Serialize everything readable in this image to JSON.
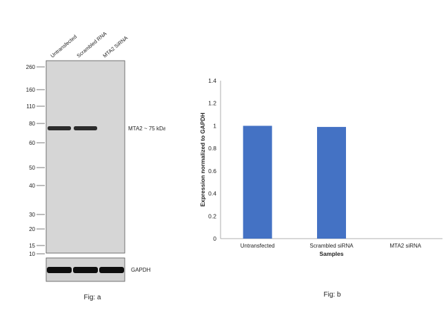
{
  "chart_data": [
    {
      "type": "western-blot",
      "lanes": [
        "Untransfected",
        "Scrambled RNA",
        "MTA2  SiRNA"
      ],
      "markers": [
        260,
        160,
        110,
        80,
        60,
        50,
        40,
        30,
        20,
        15,
        10
      ],
      "band_label": "MTA2 ~ 75 kDa",
      "band_kda": 75,
      "band_intensity": [
        1,
        1,
        0
      ],
      "loading_control_label": "GAPDH",
      "loading_control_intensity": [
        1,
        1,
        1
      ],
      "caption": "Fig: a"
    },
    {
      "type": "bar",
      "categories": [
        "Untransfected",
        "Scrambled siRNA",
        "MTA2 siRNA"
      ],
      "values": [
        1.0,
        0.99,
        0.0
      ],
      "xlabel": "Samples",
      "ylabel": "Expression normalized to GAPDH",
      "ylim": [
        0,
        1.4
      ],
      "yticks": [
        0,
        0.2,
        0.4,
        0.6,
        0.8,
        1,
        1.2,
        1.4
      ],
      "grid": false,
      "colors": {
        "bar": "#4472c4"
      },
      "caption": "Fig: b"
    }
  ]
}
